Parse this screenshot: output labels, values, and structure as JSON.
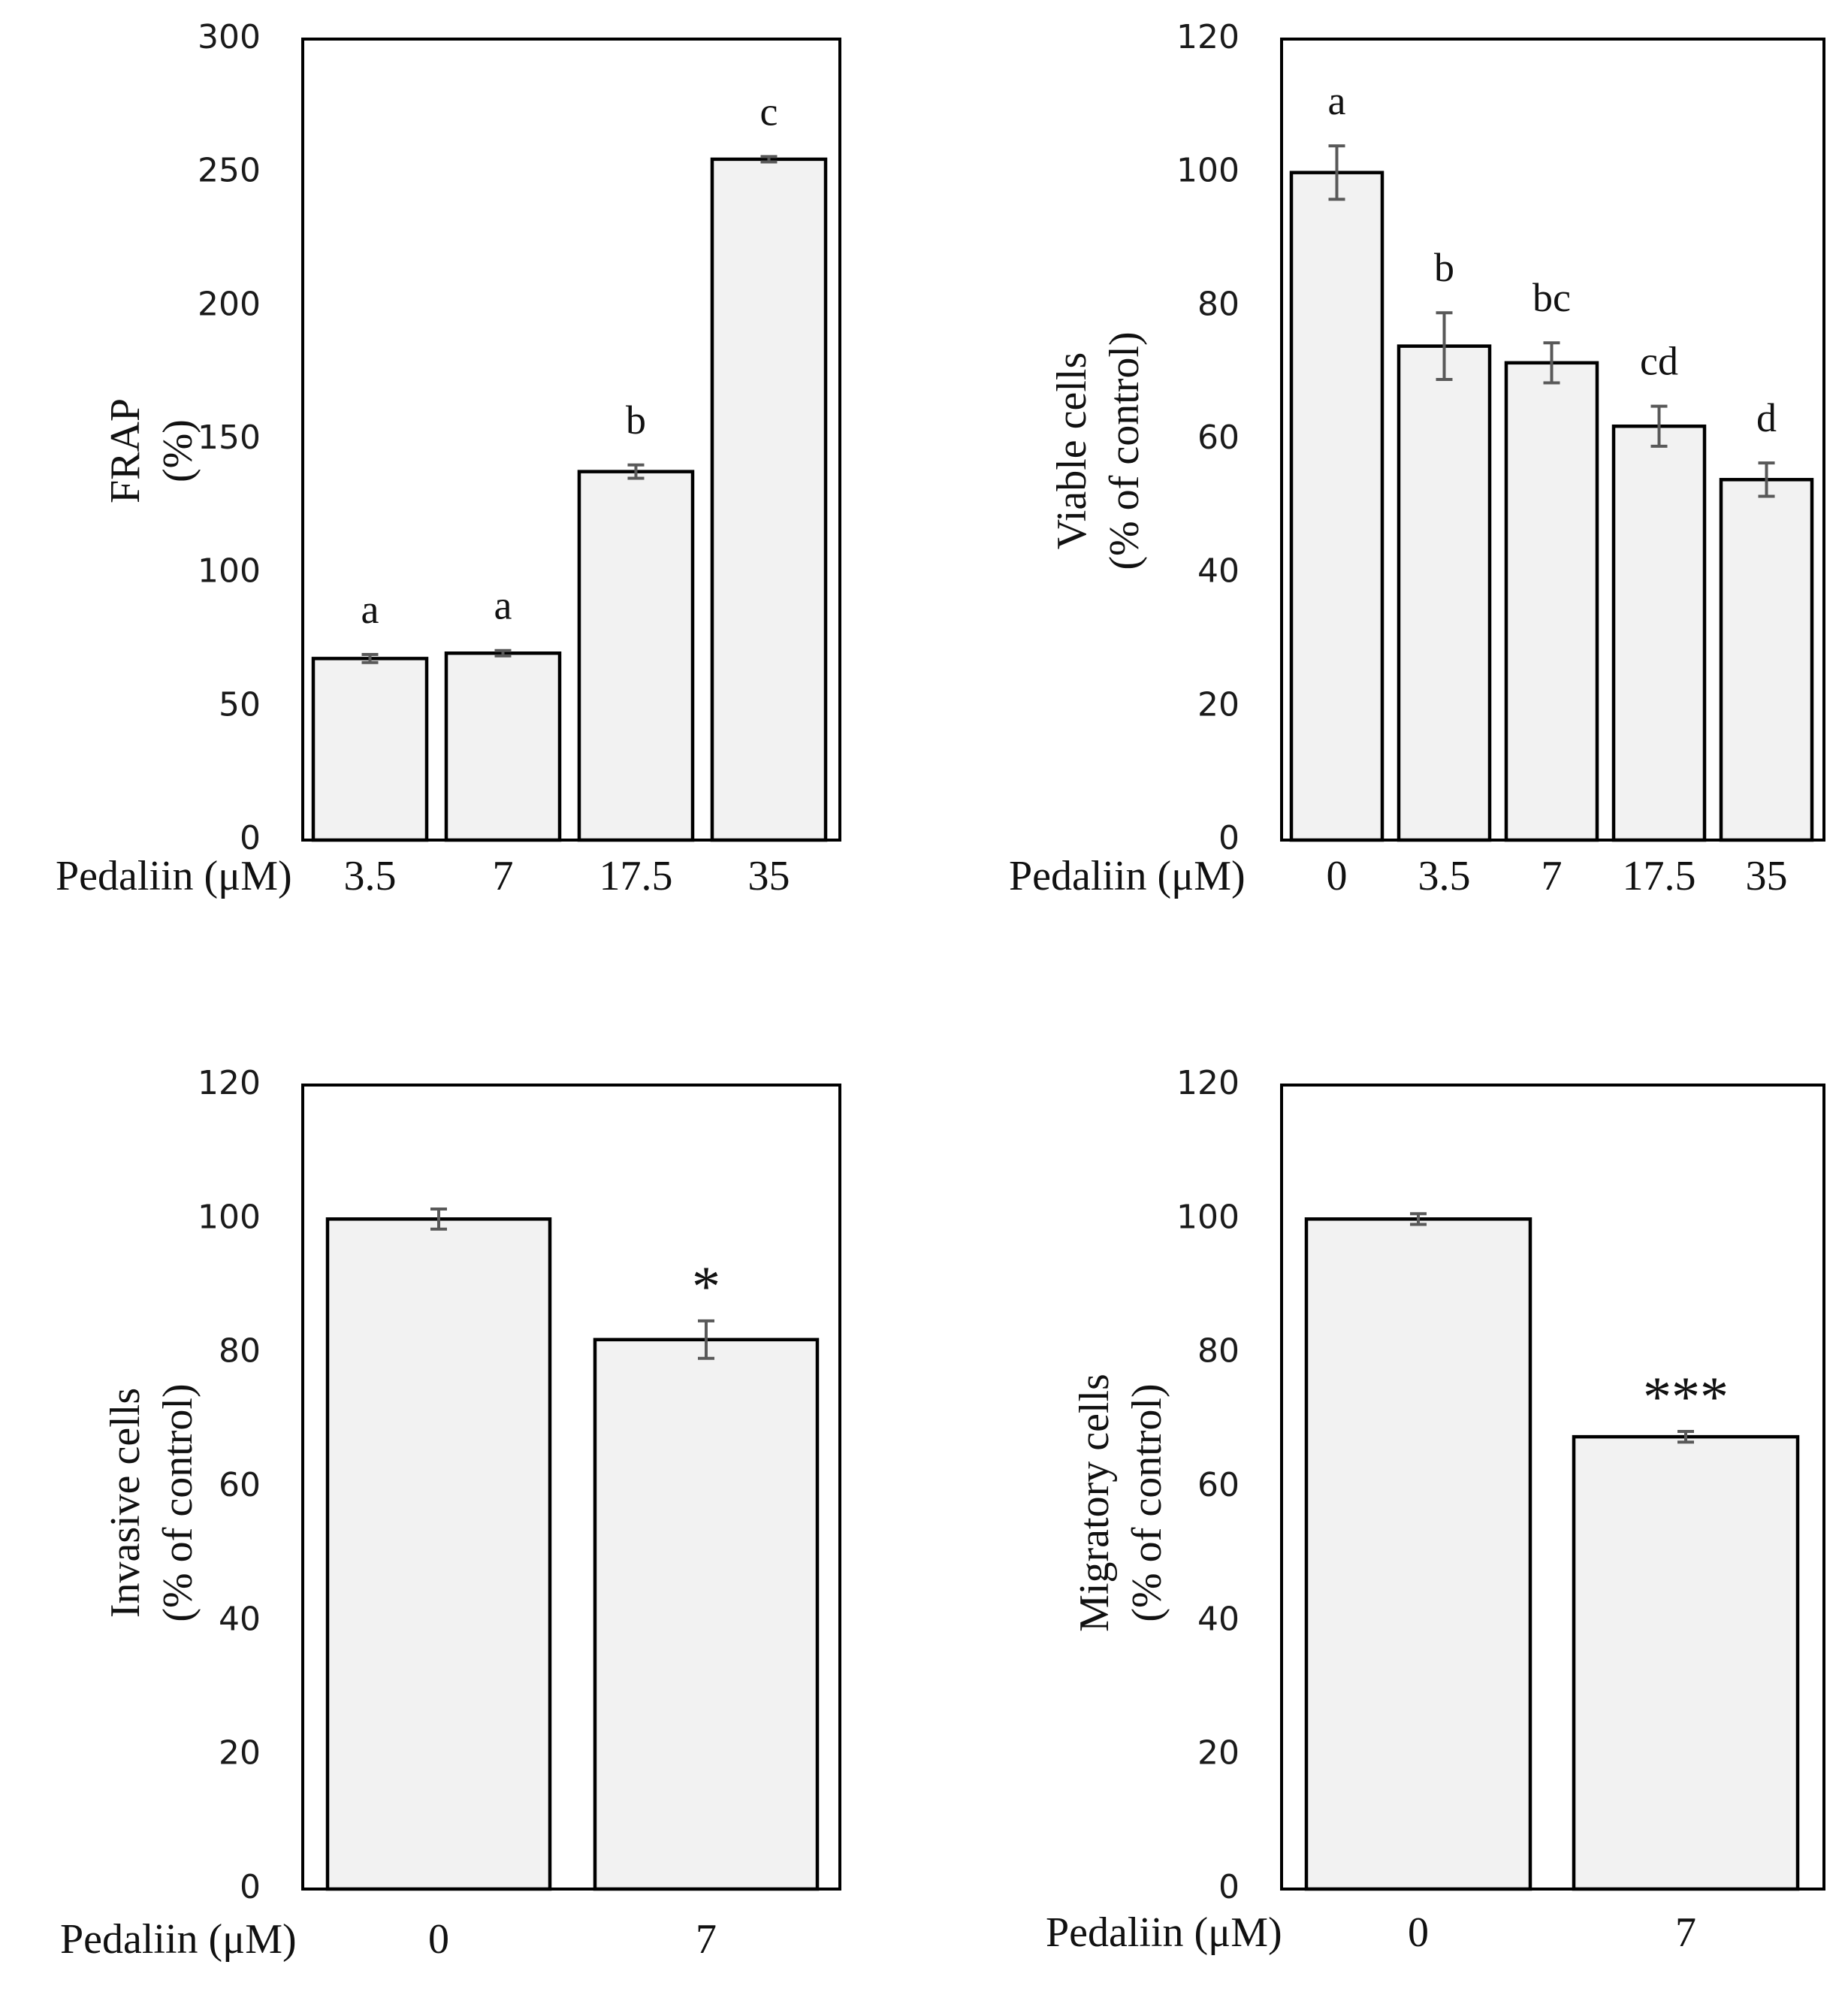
{
  "chart_data": [
    {
      "type": "bar",
      "xlabel": "Pedaliin (μM)",
      "ylabel": [
        "FRAP",
        "(%)"
      ],
      "categories": [
        "3.5",
        "7",
        "17.5",
        "35"
      ],
      "values": [
        68,
        70,
        138,
        255
      ],
      "errors": [
        1.5,
        1,
        2.5,
        1
      ],
      "significance": [
        "a",
        "a",
        "b",
        "c"
      ],
      "ylim": [
        0,
        300
      ],
      "yticks": [
        "0",
        "50",
        "100",
        "150",
        "200",
        "250",
        "300"
      ],
      "grid": false
    },
    {
      "type": "bar",
      "xlabel": "Pedaliin (μM)",
      "ylabel": [
        "Viable cells",
        "(% of control)"
      ],
      "categories": [
        "0",
        "3.5",
        "7",
        "17.5",
        "35"
      ],
      "values": [
        100,
        74,
        71.5,
        62,
        54
      ],
      "errors": [
        4,
        5,
        3,
        3,
        2.5
      ],
      "significance": [
        "a",
        "b",
        "bc",
        "cd",
        "d"
      ],
      "ylim": [
        0,
        120
      ],
      "yticks": [
        "0",
        "20",
        "40",
        "60",
        "80",
        "100",
        "120"
      ],
      "grid": false
    },
    {
      "type": "bar",
      "xlabel": "Pedaliin (μM)",
      "ylabel": [
        "Invasive cells",
        "(% of control)"
      ],
      "categories": [
        "0",
        "7"
      ],
      "values": [
        100,
        82
      ],
      "errors": [
        1.5,
        2.8
      ],
      "significance": [
        "",
        "*"
      ],
      "ylim": [
        0,
        120
      ],
      "yticks": [
        "0",
        "20",
        "40",
        "60",
        "80",
        "100",
        "120"
      ],
      "grid": false
    },
    {
      "type": "bar",
      "xlabel": "Pedaliin (μM)",
      "ylabel": [
        "Migratory cells",
        "(% of control)"
      ],
      "categories": [
        "0",
        "7"
      ],
      "values": [
        100,
        67.5
      ],
      "errors": [
        0.8,
        0.8
      ],
      "significance": [
        "",
        "***"
      ],
      "ylim": [
        0,
        120
      ],
      "yticks": [
        "0",
        "20",
        "40",
        "60",
        "80",
        "100",
        "120"
      ],
      "grid": false
    }
  ]
}
